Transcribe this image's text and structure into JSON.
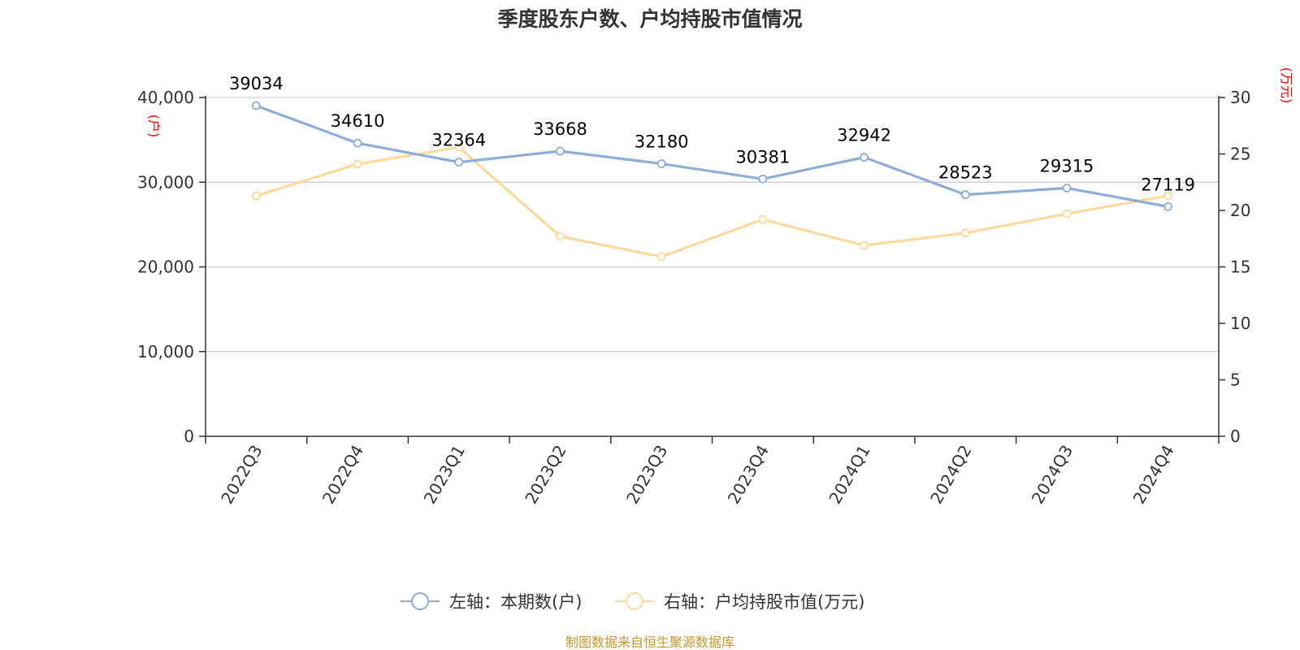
{
  "title": "季度股东户数、户均持股市值情况",
  "source": "制图数据来自恒生聚源数据库",
  "colors": {
    "left_series": "#8eaed8",
    "right_series": "#fcd99c",
    "unit": "#ff0000",
    "source": "#c8962e"
  },
  "chart_data": {
    "type": "line",
    "title": "季度股东户数、户均持股市值情况",
    "categories": [
      "2022Q3",
      "2022Q4",
      "2023Q1",
      "2023Q2",
      "2023Q3",
      "2023Q4",
      "2024Q1",
      "2024Q2",
      "2024Q3",
      "2024Q4"
    ],
    "left_axis": {
      "unit": "(户)",
      "ylim": [
        0,
        40000
      ],
      "ticks": [
        "0",
        "10,000",
        "20,000",
        "30,000",
        "40,000"
      ],
      "tick_values": [
        0,
        10000,
        20000,
        30000,
        40000
      ]
    },
    "right_axis": {
      "unit": "(万元)",
      "ylim": [
        0,
        30
      ],
      "ticks": [
        "0",
        "5",
        "10",
        "15",
        "20",
        "25",
        "30"
      ],
      "tick_values": [
        0,
        5,
        10,
        15,
        20,
        25,
        30
      ]
    },
    "grid": true,
    "legend_position": "bottom",
    "series": [
      {
        "name": "左轴：本期数(户)",
        "axis": "left",
        "values": [
          39034,
          34610,
          32364,
          33668,
          32180,
          30381,
          32942,
          28523,
          29315,
          27119
        ],
        "labels": [
          "39034",
          "34610",
          "32364",
          "33668",
          "32180",
          "30381",
          "32942",
          "28523",
          "29315",
          "27119"
        ]
      },
      {
        "name": "右轴：户均持股市值(万元)",
        "axis": "right",
        "values": [
          21.3,
          24.1,
          25.6,
          17.7,
          15.9,
          19.2,
          16.9,
          18.0,
          19.7,
          21.3
        ]
      }
    ]
  }
}
